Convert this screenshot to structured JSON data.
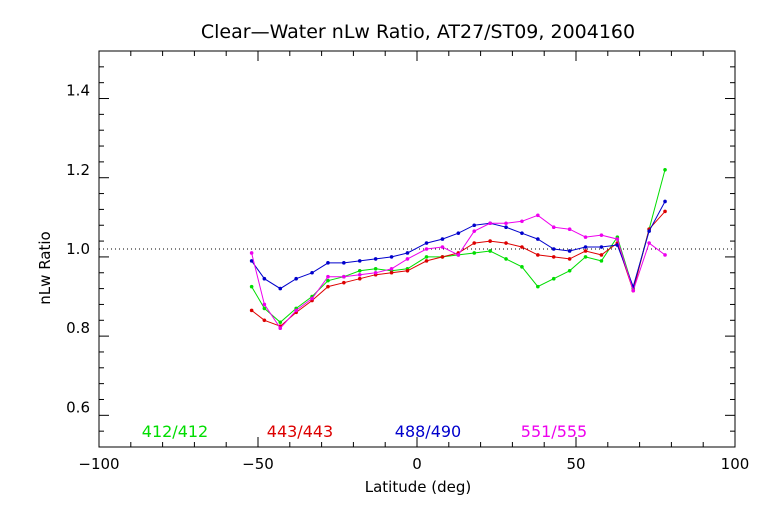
{
  "chart_data": {
    "type": "line",
    "title": "Clear—Water nLw Ratio, AT27/ST09, 2004160",
    "xlabel": "Latitude (deg)",
    "ylabel": "nLw Ratio",
    "xlim": [
      -100,
      100
    ],
    "ylim": [
      0.5,
      1.5
    ],
    "xticks": [
      -100,
      -50,
      0,
      50,
      100
    ],
    "xtick_labels": [
      "−100",
      "−50",
      "0",
      "50",
      "100"
    ],
    "yticks": [
      0.6,
      0.8,
      1.0,
      1.2,
      1.4
    ],
    "ytick_labels": [
      "0.6",
      "0.8",
      "1.0",
      "1.2",
      "1.4"
    ],
    "reference_line": 1.0,
    "legend_placement": "bottom",
    "series": [
      {
        "name": "412/412",
        "color": "#00dd00",
        "x": [
          -52,
          -48,
          -43,
          -38,
          -33,
          -28,
          -23,
          -18,
          -13,
          -8,
          -3,
          3,
          8,
          13,
          18,
          23,
          28,
          33,
          38,
          43,
          48,
          53,
          58,
          63,
          68,
          73,
          78
        ],
        "y": [
          0.905,
          0.85,
          0.815,
          0.85,
          0.88,
          0.92,
          0.93,
          0.945,
          0.95,
          0.945,
          0.95,
          0.98,
          0.98,
          0.985,
          0.99,
          0.995,
          0.975,
          0.955,
          0.905,
          0.925,
          0.945,
          0.98,
          0.97,
          1.03,
          0.9,
          1.05,
          1.2
        ]
      },
      {
        "name": "443/443",
        "color": "#dd0000",
        "x": [
          -52,
          -48,
          -43,
          -38,
          -33,
          -28,
          -23,
          -18,
          -13,
          -8,
          -3,
          3,
          8,
          13,
          18,
          23,
          28,
          33,
          38,
          43,
          48,
          53,
          58,
          63,
          68,
          73,
          78
        ],
        "y": [
          0.845,
          0.82,
          0.805,
          0.84,
          0.87,
          0.905,
          0.915,
          0.925,
          0.935,
          0.94,
          0.945,
          0.97,
          0.98,
          0.99,
          1.015,
          1.02,
          1.015,
          1.005,
          0.985,
          0.98,
          0.975,
          0.995,
          0.985,
          1.015,
          0.895,
          1.05,
          1.095
        ]
      },
      {
        "name": "488/490",
        "color": "#0000cc",
        "x": [
          -52,
          -48,
          -43,
          -38,
          -33,
          -28,
          -23,
          -18,
          -13,
          -8,
          -3,
          3,
          8,
          13,
          18,
          23,
          28,
          33,
          38,
          43,
          48,
          53,
          58,
          63,
          68,
          73,
          78
        ],
        "y": [
          0.97,
          0.925,
          0.9,
          0.925,
          0.94,
          0.965,
          0.965,
          0.97,
          0.975,
          0.98,
          0.99,
          1.015,
          1.025,
          1.04,
          1.06,
          1.065,
          1.055,
          1.04,
          1.025,
          1.0,
          0.995,
          1.005,
          1.005,
          1.01,
          0.905,
          1.045,
          1.12
        ]
      },
      {
        "name": "551/555",
        "color": "#ee00ee",
        "x": [
          -52,
          -48,
          -43,
          -38,
          -33,
          -28,
          -23,
          -18,
          -13,
          -8,
          -3,
          3,
          8,
          13,
          18,
          23,
          28,
          33,
          38,
          43,
          48,
          53,
          58,
          63,
          68,
          73,
          78
        ],
        "y": [
          0.99,
          0.86,
          0.8,
          0.845,
          0.875,
          0.93,
          0.93,
          0.935,
          0.94,
          0.95,
          0.975,
          1.0,
          1.005,
          0.985,
          1.045,
          1.065,
          1.065,
          1.07,
          1.085,
          1.055,
          1.05,
          1.03,
          1.035,
          1.025,
          0.895,
          1.015,
          0.985
        ]
      }
    ]
  }
}
